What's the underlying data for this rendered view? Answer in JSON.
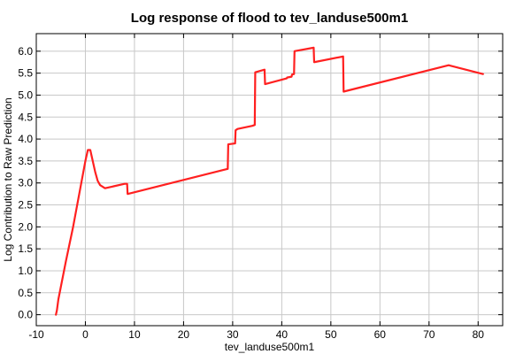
{
  "chart_data": {
    "type": "line",
    "title": "Log response of flood to tev_landuse500m1",
    "xlabel": "tev_landuse500m1",
    "ylabel": "Log Contribution to Raw Prediction",
    "xlim": [
      -10,
      85
    ],
    "ylim": [
      -0.25,
      6.4
    ],
    "xticks": [
      -10,
      0,
      10,
      20,
      30,
      40,
      50,
      60,
      70,
      80
    ],
    "yticks": [
      0.0,
      0.5,
      1.0,
      1.5,
      2.0,
      2.5,
      3.0,
      3.5,
      4.0,
      4.5,
      5.0,
      5.5,
      6.0
    ],
    "ytick_labels": [
      "0.0",
      "0.5",
      "1.0",
      "1.5",
      "2.0",
      "2.5",
      "3.0",
      "3.5",
      "4.0",
      "4.5",
      "5.0",
      "5.5",
      "6.0"
    ],
    "grid": true,
    "line_color": "#ff2020",
    "series": [
      {
        "x": [
          -6.0,
          -5.8,
          -5.5,
          -4.0,
          -2.5,
          -1.5,
          -1.0,
          0.0,
          0.5,
          1.0,
          1.5,
          2.0,
          2.5,
          3.0,
          4.0,
          8.0,
          8.5,
          8.6,
          29.0,
          29.1,
          30.5,
          30.6,
          31.0,
          34.0,
          34.5,
          34.6,
          36.5,
          36.6,
          41.0,
          41.1,
          42.0,
          42.1,
          42.5,
          42.6,
          46.5,
          46.6,
          52.5,
          52.6,
          74.0,
          81.0
        ],
        "y": [
          0.0,
          0.1,
          0.35,
          1.2,
          2.0,
          2.6,
          2.9,
          3.5,
          3.75,
          3.75,
          3.5,
          3.25,
          3.05,
          2.95,
          2.88,
          2.98,
          2.98,
          2.75,
          3.32,
          3.88,
          3.9,
          4.2,
          4.23,
          4.3,
          4.32,
          5.52,
          5.58,
          5.25,
          5.38,
          5.4,
          5.42,
          5.47,
          5.48,
          6.0,
          6.08,
          5.75,
          5.88,
          5.08,
          5.68,
          5.48
        ]
      }
    ]
  }
}
